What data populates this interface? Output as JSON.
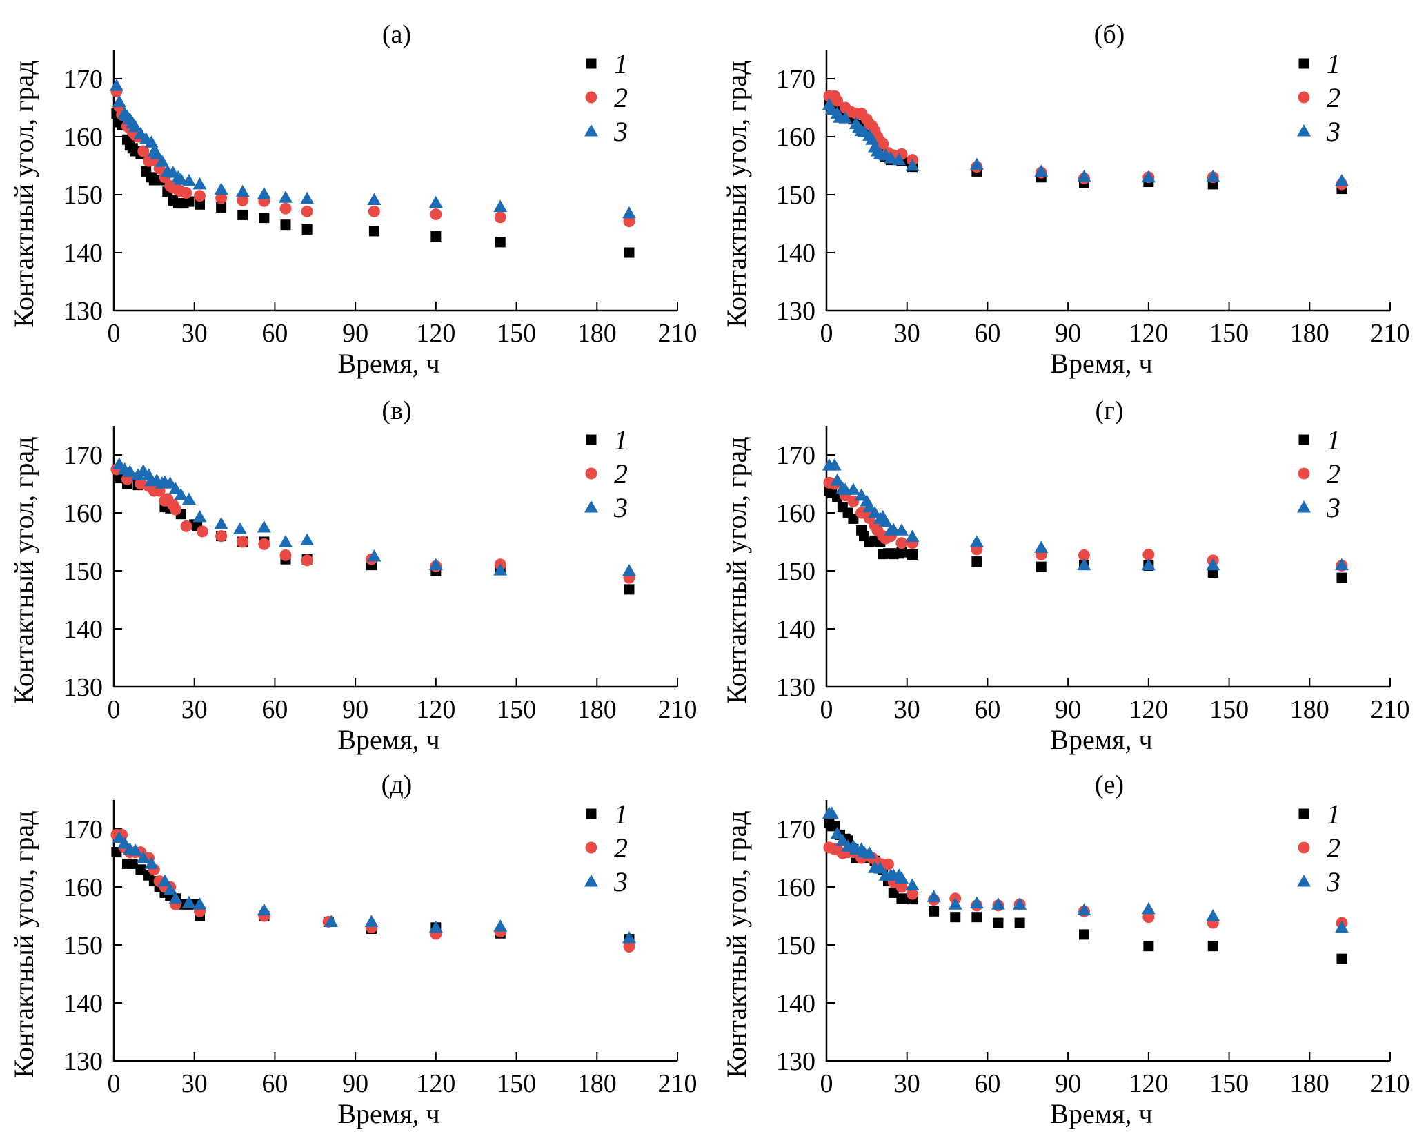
{
  "figure": {
    "colors": {
      "series1": "#000000",
      "series2": "#ea4a45",
      "series3": "#1c6bb5"
    },
    "legend": [
      "1",
      "2",
      "3"
    ],
    "legend_placement": "top-right",
    "marker_shapes": [
      "square",
      "circle",
      "triangle"
    ]
  },
  "chart_data": [
    {
      "type": "scatter",
      "title": "(а)",
      "xlabel": "Время, ч",
      "ylabel": "Контактный угол, град",
      "xlim": [
        0,
        210
      ],
      "ylim": [
        130,
        175
      ],
      "xticks": [
        0,
        30,
        60,
        90,
        120,
        150,
        180,
        210
      ],
      "yticks": [
        130,
        140,
        150,
        160,
        170
      ],
      "grid": false,
      "series": [
        {
          "name": "1",
          "x": [
            1,
            2,
            3,
            5,
            6,
            7,
            8,
            10,
            12,
            14,
            15,
            16,
            18,
            20,
            22,
            24,
            26,
            28,
            32,
            40,
            48,
            56,
            64,
            72,
            97,
            120,
            144,
            192
          ],
          "y": [
            164,
            162.5,
            162,
            159.5,
            158.5,
            158,
            157.5,
            157,
            154,
            153,
            152.5,
            152.5,
            152.5,
            150.5,
            149,
            148.5,
            148.5,
            148.8,
            148.3,
            147.8,
            146.5,
            146,
            144.8,
            144,
            143.7,
            142.8,
            141.8,
            140
          ]
        },
        {
          "name": "2",
          "x": [
            1,
            2,
            3,
            5,
            6,
            7,
            8,
            9,
            11,
            13,
            15,
            17,
            19,
            21,
            22,
            24,
            25,
            27,
            32,
            40,
            48,
            56,
            64,
            72,
            97,
            120,
            144,
            192
          ],
          "y": [
            167.8,
            165.2,
            163.8,
            161.8,
            161.4,
            160.8,
            160.3,
            160,
            157.5,
            155.8,
            156,
            154.5,
            153,
            151.5,
            151.2,
            150.8,
            150.5,
            150.3,
            149.8,
            149.4,
            149,
            148.9,
            147.6,
            147.1,
            147.1,
            146.6,
            146.1,
            145.4
          ]
        },
        {
          "name": "3",
          "x": [
            1,
            2,
            4,
            5,
            6,
            7,
            8,
            10,
            12,
            14,
            15,
            16,
            18,
            20,
            22,
            24,
            25,
            28,
            32,
            40,
            48,
            56,
            64,
            72,
            97,
            120,
            144,
            192
          ],
          "y": [
            168.8,
            166,
            164,
            163.5,
            163,
            162.3,
            161.7,
            160.5,
            159.6,
            159,
            157.5,
            157,
            155.7,
            154,
            153.8,
            153,
            152.6,
            152.4,
            151.8,
            150.9,
            150.5,
            150.1,
            149.5,
            149.3,
            149.1,
            148.6,
            147.9,
            146.8
          ]
        }
      ]
    },
    {
      "type": "scatter",
      "title": "(б)",
      "xlabel": "Время, ч",
      "ylabel": "Контактный угол, град",
      "xlim": [
        0,
        210
      ],
      "ylim": [
        130,
        175
      ],
      "xticks": [
        0,
        30,
        60,
        90,
        120,
        150,
        180,
        210
      ],
      "yticks": [
        130,
        140,
        150,
        160,
        170
      ],
      "grid": false,
      "series": [
        {
          "name": "1",
          "x": [
            1,
            3,
            5,
            8,
            10,
            13,
            15,
            17,
            18,
            19,
            20,
            21,
            22,
            24,
            26,
            28,
            32,
            56,
            80,
            96,
            120,
            144,
            192
          ],
          "y": [
            165.5,
            165,
            164,
            163.5,
            163,
            162,
            161,
            160.5,
            160,
            158.5,
            158,
            157.5,
            156.5,
            156,
            156,
            155.8,
            154.8,
            154,
            153,
            152,
            152.2,
            151.8,
            151
          ]
        },
        {
          "name": "2",
          "x": [
            1,
            3,
            4,
            7,
            9,
            11,
            13,
            15,
            16,
            17,
            18,
            19,
            20,
            21,
            23,
            25,
            28,
            32,
            56,
            80,
            96,
            120,
            144,
            192
          ],
          "y": [
            167,
            167,
            166.2,
            165,
            164.3,
            164,
            164,
            163,
            162.2,
            161.8,
            161,
            160,
            159.2,
            158.8,
            157.2,
            156.8,
            157,
            156,
            154.8,
            153.8,
            152.8,
            153,
            153,
            151.8
          ]
        },
        {
          "name": "3",
          "x": [
            1,
            2,
            4,
            5,
            7,
            11,
            12,
            13,
            14,
            16,
            17,
            18,
            19,
            20,
            22,
            24,
            27,
            32,
            56,
            80,
            96,
            120,
            144,
            192
          ],
          "y": [
            165.5,
            164.7,
            164,
            163.3,
            163.2,
            162.2,
            161.5,
            161,
            160.8,
            160.2,
            159.5,
            158.2,
            157.5,
            157,
            156.8,
            156.3,
            156,
            155,
            155.2,
            154,
            153.1,
            153,
            153.1,
            152.4
          ]
        }
      ]
    },
    {
      "type": "scatter",
      "title": "(в)",
      "xlabel": "Время, ч",
      "ylabel": "Контактный угол, град",
      "xlim": [
        0,
        210
      ],
      "ylim": [
        130,
        175
      ],
      "xticks": [
        0,
        30,
        60,
        90,
        120,
        150,
        180,
        210
      ],
      "yticks": [
        130,
        140,
        150,
        160,
        170
      ],
      "grid": false,
      "series": [
        {
          "name": "1",
          "x": [
            2,
            5,
            9,
            16,
            19,
            21,
            25,
            30,
            31,
            40,
            48,
            56,
            64,
            72,
            96,
            120,
            144,
            192
          ],
          "y": [
            166,
            165,
            164.8,
            163.8,
            161,
            160.8,
            159.8,
            158,
            157.7,
            156,
            155,
            155,
            152,
            152,
            151,
            150,
            150.2,
            146.8
          ]
        },
        {
          "name": "2",
          "x": [
            1,
            5,
            10,
            13,
            15,
            17,
            19,
            20,
            22,
            23,
            27,
            33,
            40,
            48,
            56,
            64,
            72,
            96,
            120,
            144,
            192
          ],
          "y": [
            167.5,
            165.8,
            165,
            164.6,
            163.8,
            163.8,
            162.1,
            162.4,
            161.4,
            160.6,
            157.7,
            156.8,
            156,
            155,
            154.6,
            152.7,
            151.8,
            152,
            150.8,
            151.1,
            148.8
          ]
        },
        {
          "name": "3",
          "x": [
            2,
            4,
            6,
            9,
            11,
            13,
            14,
            16,
            18,
            19,
            21,
            23,
            25,
            28,
            32,
            40,
            47,
            56,
            64,
            72,
            97,
            120,
            144,
            192
          ],
          "y": [
            168.4,
            167.5,
            167.1,
            166.5,
            167.2,
            166.5,
            165.5,
            165.6,
            165.1,
            165.3,
            165.1,
            164.1,
            163.1,
            162.3,
            159.3,
            158.1,
            157.2,
            157.5,
            155,
            155.3,
            152.5,
            151,
            150.1,
            150
          ]
        }
      ]
    },
    {
      "type": "scatter",
      "title": "(г)",
      "xlabel": "Время, ч",
      "ylabel": "Контактный угол, град",
      "xlim": [
        0,
        210
      ],
      "ylim": [
        130,
        175
      ],
      "xticks": [
        0,
        30,
        60,
        90,
        120,
        150,
        180,
        210
      ],
      "yticks": [
        130,
        140,
        150,
        160,
        170
      ],
      "grid": false,
      "series": [
        {
          "name": "1",
          "x": [
            1,
            2,
            4,
            6,
            8,
            10,
            13,
            14,
            16,
            18,
            20,
            21,
            23,
            24,
            25,
            27,
            28,
            32,
            56,
            80,
            96,
            120,
            144,
            192
          ],
          "y": [
            163.8,
            163.4,
            162.8,
            161,
            160,
            159,
            157,
            156,
            155,
            155.2,
            155,
            152.9,
            153,
            153,
            152.9,
            153,
            153.2,
            152.8,
            151.6,
            150.7,
            151,
            150.9,
            149.7,
            148.8
          ]
        },
        {
          "name": "2",
          "x": [
            1,
            3,
            7,
            10,
            13,
            14,
            16,
            18,
            19,
            21,
            22,
            24,
            28,
            32,
            56,
            80,
            96,
            120,
            144,
            192
          ],
          "y": [
            165.2,
            165,
            163,
            162,
            160,
            160,
            159.1,
            157.8,
            157,
            156,
            155.6,
            156,
            154.8,
            154.8,
            153.7,
            152.8,
            152.7,
            152.8,
            151.8,
            150.9
          ]
        },
        {
          "name": "3",
          "x": [
            1,
            3,
            4,
            6,
            7,
            10,
            13,
            15,
            16,
            18,
            20,
            21,
            22,
            24,
            25,
            28,
            32,
            56,
            80,
            96,
            120,
            144,
            192
          ],
          "y": [
            168.2,
            168.2,
            165.6,
            164.2,
            164,
            164,
            163,
            162,
            161,
            160,
            159,
            159.3,
            158.5,
            157,
            157.1,
            157,
            155.9,
            155,
            154,
            151,
            151,
            151,
            151
          ]
        }
      ]
    },
    {
      "type": "scatter",
      "title": "(д)",
      "xlabel": "Время, ч",
      "ylabel": "Контактный угол, град",
      "xlim": [
        0,
        210
      ],
      "ylim": [
        130,
        175
      ],
      "xticks": [
        0,
        30,
        60,
        90,
        120,
        150,
        180,
        210
      ],
      "yticks": [
        130,
        140,
        150,
        160,
        170
      ],
      "grid": false,
      "series": [
        {
          "name": "1",
          "x": [
            1,
            2,
            5,
            7,
            10,
            13,
            15,
            17,
            19,
            21,
            23,
            26,
            28,
            30,
            32,
            56,
            80,
            96,
            120,
            144,
            192
          ],
          "y": [
            166,
            169,
            164,
            164,
            163,
            162,
            161,
            160,
            159,
            158.5,
            158,
            157,
            157,
            157,
            155,
            155,
            154,
            152.8,
            153,
            152,
            151
          ]
        },
        {
          "name": "2",
          "x": [
            1,
            3,
            4,
            6,
            8,
            10,
            13,
            15,
            17,
            19,
            21,
            23,
            32,
            56,
            80,
            96,
            120,
            144,
            192
          ],
          "y": [
            169,
            169,
            166.8,
            166,
            166,
            166,
            165,
            163,
            161,
            160,
            160,
            157,
            155.8,
            155,
            154,
            153,
            151.9,
            152.3,
            149.7
          ]
        },
        {
          "name": "3",
          "x": [
            2,
            4,
            6,
            8,
            11,
            14,
            19,
            21,
            23,
            28,
            32,
            56,
            81,
            96,
            120,
            144,
            192
          ],
          "y": [
            168.5,
            167.5,
            166.5,
            166.3,
            165,
            164,
            161,
            159.5,
            158,
            157.3,
            157,
            156,
            154,
            154,
            153,
            153.2,
            151.2
          ]
        }
      ]
    },
    {
      "type": "scatter",
      "title": "(е)",
      "xlabel": "Время, ч",
      "ylabel": "Контактный угол, град",
      "xlim": [
        0,
        210
      ],
      "ylim": [
        130,
        175
      ],
      "xticks": [
        0,
        30,
        60,
        90,
        120,
        150,
        180,
        210
      ],
      "yticks": [
        130,
        140,
        150,
        160,
        170
      ],
      "grid": false,
      "series": [
        {
          "name": "1",
          "x": [
            1,
            2,
            3,
            5,
            7,
            8,
            10,
            11,
            14,
            16,
            18,
            21,
            23,
            25,
            28,
            32,
            40,
            48,
            56,
            64,
            72,
            96,
            120,
            144,
            192
          ],
          "y": [
            171,
            170.5,
            170.5,
            169,
            168.3,
            168,
            166.5,
            165,
            165,
            165,
            164.5,
            163,
            161,
            159,
            158,
            157.9,
            155.8,
            154.8,
            154.8,
            153.8,
            153.8,
            151.8,
            149.8,
            149.8,
            147.6
          ]
        },
        {
          "name": "2",
          "x": [
            1,
            3,
            4,
            6,
            8,
            10,
            13,
            15,
            17,
            19,
            21,
            23,
            25,
            28,
            32,
            40,
            48,
            56,
            64,
            72,
            96,
            120,
            144,
            192
          ],
          "y": [
            166.8,
            166.5,
            166.5,
            165.8,
            166,
            166,
            165,
            165.5,
            165,
            164.2,
            163.9,
            163.9,
            160.8,
            160,
            158.8,
            157.8,
            158,
            156.8,
            156.8,
            157,
            155.8,
            154.8,
            153.8,
            153.8
          ]
        },
        {
          "name": "3",
          "x": [
            1,
            2,
            4,
            6,
            8,
            10,
            11,
            13,
            14,
            16,
            18,
            20,
            22,
            24,
            25,
            27,
            28,
            32,
            40,
            48,
            56,
            64,
            72,
            96,
            120,
            144,
            192
          ],
          "y": [
            172.7,
            172.7,
            169.2,
            168,
            167,
            167,
            166.5,
            166.5,
            166,
            165.8,
            163.3,
            163.2,
            162,
            162,
            162,
            162,
            161.5,
            160.3,
            158.3,
            157,
            157.2,
            157,
            157,
            156,
            156.2,
            155,
            153
          ]
        }
      ]
    }
  ]
}
